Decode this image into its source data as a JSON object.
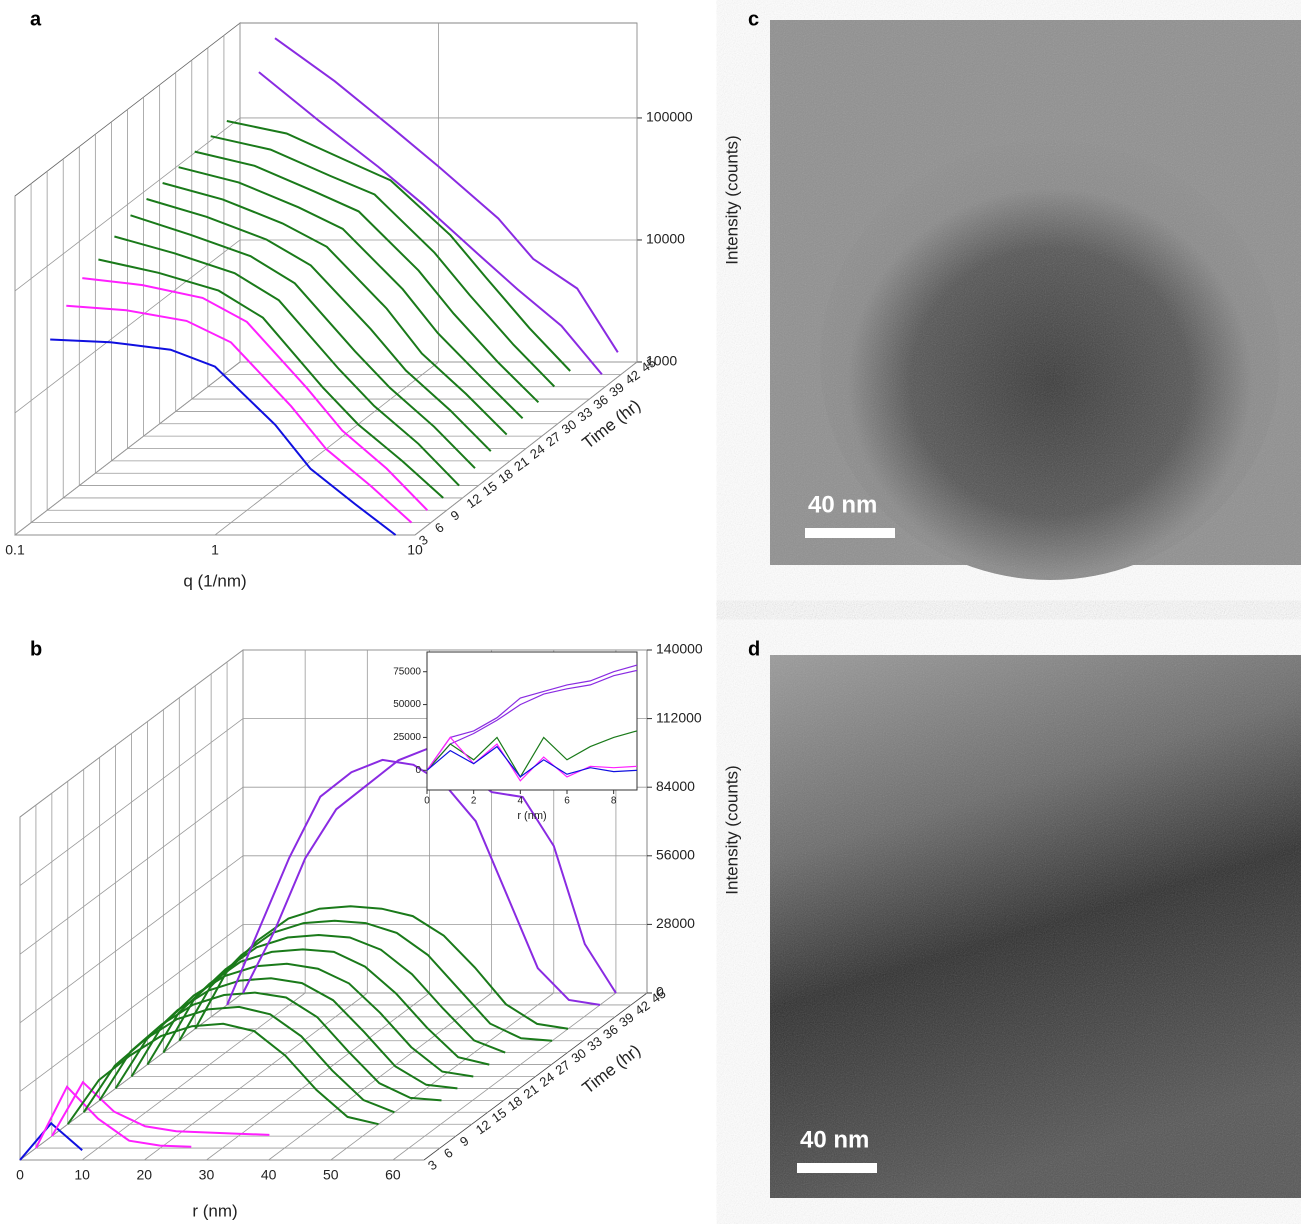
{
  "chart_data": [
    {
      "type": "waterfall",
      "panel_label": "a",
      "x_label": "q (1/nm)",
      "y_label": "Intensity (counts)",
      "z_label": "Time (hr)",
      "x_scale": "log",
      "y_scale": "log",
      "xlim": [
        0.1,
        10
      ],
      "xticks": [
        0.1,
        1,
        10
      ],
      "ylim": [
        1000,
        600000
      ],
      "yticks": [
        1000,
        10000,
        100000
      ],
      "zlim": [
        3,
        45
      ],
      "zticks": [
        3,
        6,
        9,
        12,
        15,
        18,
        21,
        24,
        27,
        30,
        33,
        36,
        39,
        42,
        45
      ],
      "x": [
        0.15,
        0.3,
        0.6,
        1,
        2,
        3,
        5,
        8
      ],
      "series": [
        {
          "time": 3,
          "color": "#1010e0",
          "values": [
            40000,
            38000,
            33000,
            24000,
            8000,
            3500,
            1800,
            1000
          ]
        },
        {
          "time": 6,
          "color": "#ff20ff",
          "values": [
            60000,
            55000,
            45000,
            30000,
            9000,
            4000,
            2000,
            1000
          ]
        },
        {
          "time": 9,
          "color": "#ff20ff",
          "values": [
            80000,
            70000,
            55000,
            35000,
            10000,
            4500,
            2200,
            1000
          ]
        },
        {
          "time": 12,
          "color": "#1a7a1a",
          "values": [
            90000,
            70000,
            50000,
            30000,
            8000,
            4000,
            2000,
            1000
          ]
        },
        {
          "time": 15,
          "color": "#1a7a1a",
          "values": [
            110000,
            80000,
            55000,
            33000,
            9000,
            4500,
            2200,
            1000
          ]
        },
        {
          "time": 18,
          "color": "#1a7a1a",
          "values": [
            130000,
            90000,
            60000,
            36000,
            10000,
            5000,
            2400,
            1100
          ]
        },
        {
          "time": 21,
          "color": "#1a7a1a",
          "values": [
            140000,
            100000,
            65000,
            40000,
            12000,
            5500,
            2600,
            1200
          ]
        },
        {
          "time": 24,
          "color": "#1a7a1a",
          "values": [
            150000,
            110000,
            70000,
            45000,
            14000,
            6000,
            2800,
            1300
          ]
        },
        {
          "time": 27,
          "color": "#1a7a1a",
          "values": [
            160000,
            120000,
            75000,
            50000,
            16000,
            7000,
            3000,
            1400
          ]
        },
        {
          "time": 30,
          "color": "#1a7a1a",
          "values": [
            170000,
            130000,
            80000,
            55000,
            18000,
            8000,
            3200,
            1500
          ]
        },
        {
          "time": 33,
          "color": "#1a7a1a",
          "values": [
            180000,
            140000,
            85000,
            60000,
            20000,
            9000,
            3500,
            1600
          ]
        },
        {
          "time": 36,
          "color": "#1a7a1a",
          "values": [
            190000,
            150000,
            90000,
            62000,
            22000,
            10000,
            3800,
            1700
          ]
        },
        {
          "time": 42,
          "color": "#8a2be2",
          "values": [
            300000,
            120000,
            50000,
            25000,
            9000,
            5000,
            2500,
            1000
          ]
        },
        {
          "time": 45,
          "color": "#8a2be2",
          "values": [
            450000,
            200000,
            80000,
            40000,
            15000,
            7000,
            4000,
            1200
          ]
        }
      ]
    },
    {
      "type": "waterfall",
      "panel_label": "b",
      "x_label": "r (nm)",
      "y_label": "Intensity (counts)",
      "z_label": "Time (hr)",
      "x_scale": "linear",
      "y_scale": "linear",
      "xlim": [
        0,
        65
      ],
      "xticks": [
        0,
        10,
        20,
        30,
        40,
        50,
        60
      ],
      "ylim": [
        0,
        140000
      ],
      "yticks": [
        0,
        28000,
        56000,
        84000,
        112000,
        140000
      ],
      "zlim": [
        3,
        45
      ],
      "zticks": [
        3,
        6,
        9,
        12,
        15,
        18,
        21,
        24,
        27,
        30,
        33,
        36,
        39,
        42,
        45
      ],
      "x": [
        0,
        5,
        10,
        15,
        20,
        25,
        30,
        35,
        40,
        45,
        50,
        55,
        60
      ],
      "series": [
        {
          "time": 3,
          "color": "#1010e0",
          "values": [
            0,
            15000,
            4000,
            null,
            null,
            null,
            null,
            null,
            null,
            null,
            null,
            null,
            null
          ]
        },
        {
          "time": 6,
          "color": "#ff20ff",
          "values": [
            0,
            25000,
            12000,
            3000,
            1000,
            500,
            null,
            null,
            null,
            null,
            null,
            null,
            null
          ]
        },
        {
          "time": 9,
          "color": "#ff20ff",
          "values": [
            0,
            22000,
            10000,
            4000,
            2000,
            1500,
            1000,
            500,
            null,
            null,
            null,
            null,
            null
          ]
        },
        {
          "time": 12,
          "color": "#1a7a1a",
          "values": [
            0,
            18000,
            28000,
            36000,
            40000,
            41000,
            38000,
            28000,
            14000,
            3000,
            0,
            null,
            null
          ]
        },
        {
          "time": 15,
          "color": "#1a7a1a",
          "values": [
            0,
            19000,
            30000,
            38000,
            42000,
            43000,
            40000,
            31000,
            17000,
            5000,
            0,
            null,
            null
          ]
        },
        {
          "time": 18,
          "color": "#1a7a1a",
          "values": [
            0,
            20000,
            31000,
            39000,
            43000,
            44000,
            42000,
            34000,
            20000,
            7000,
            1000,
            0,
            null
          ]
        },
        {
          "time": 21,
          "color": "#1a7a1a",
          "values": [
            0,
            20000,
            32000,
            40000,
            44000,
            45000,
            43000,
            36000,
            23000,
            9000,
            1500,
            0,
            null
          ]
        },
        {
          "time": 24,
          "color": "#1a7a1a",
          "values": [
            0,
            21000,
            33000,
            41000,
            45000,
            46000,
            44000,
            38000,
            26000,
            12000,
            2000,
            0,
            null
          ]
        },
        {
          "time": 27,
          "color": "#1a7a1a",
          "values": [
            0,
            21000,
            33000,
            42000,
            46000,
            47000,
            46000,
            40000,
            29000,
            15000,
            3000,
            0,
            null
          ]
        },
        {
          "time": 30,
          "color": "#1a7a1a",
          "values": [
            0,
            22000,
            34000,
            43000,
            47000,
            48000,
            47000,
            42000,
            32000,
            18000,
            5000,
            0,
            null
          ]
        },
        {
          "time": 33,
          "color": "#1a7a1a",
          "values": [
            0,
            22000,
            35000,
            44000,
            48000,
            49000,
            48000,
            44000,
            35000,
            21000,
            7000,
            1000,
            0
          ]
        },
        {
          "time": 36,
          "color": "#1a7a1a",
          "values": [
            0,
            23000,
            36000,
            45000,
            49000,
            50000,
            49000,
            46000,
            38000,
            25000,
            10000,
            2000,
            0
          ]
        },
        {
          "time": 42,
          "color": "#8a2be2",
          "values": [
            0,
            30000,
            60000,
            85000,
            95000,
            100000,
            98000,
            90000,
            75000,
            45000,
            15000,
            2000,
            0
          ]
        },
        {
          "time": 45,
          "color": "#8a2be2",
          "values": [
            0,
            25000,
            55000,
            75000,
            85000,
            95000,
            100000,
            92000,
            82000,
            80000,
            60000,
            20000,
            0
          ]
        }
      ]
    },
    {
      "type": "line",
      "x_label": "r (nm)",
      "xlim": [
        0,
        9
      ],
      "xticks": [
        0,
        2,
        4,
        6,
        8
      ],
      "ylim": [
        -15000,
        90000
      ],
      "yticks": [
        0,
        25000,
        50000,
        75000
      ],
      "x": [
        0,
        1,
        2,
        3,
        4,
        5,
        6,
        7,
        8,
        9
      ],
      "series": [
        {
          "color": "#8a2be2",
          "values": [
            0,
            25000,
            30000,
            40000,
            55000,
            60000,
            65000,
            68000,
            75000,
            80000
          ]
        },
        {
          "color": "#8a2be2",
          "values": [
            0,
            20000,
            28000,
            38000,
            50000,
            58000,
            62000,
            65000,
            72000,
            76000
          ]
        },
        {
          "color": "#1a7a1a",
          "values": [
            0,
            20000,
            8000,
            25000,
            -5000,
            25000,
            8000,
            18000,
            25000,
            30000
          ]
        },
        {
          "color": "#ff20ff",
          "values": [
            0,
            25000,
            5000,
            20000,
            -8000,
            10000,
            -5000,
            3000,
            2000,
            3000
          ]
        },
        {
          "color": "#1010e0",
          "values": [
            0,
            15000,
            5000,
            18000,
            -5000,
            8000,
            -3000,
            2000,
            -1000,
            0
          ]
        }
      ]
    }
  ],
  "images": [
    {
      "panel_label": "c",
      "scale_bar": "40 nm"
    },
    {
      "panel_label": "d",
      "scale_bar": "40 nm"
    }
  ]
}
